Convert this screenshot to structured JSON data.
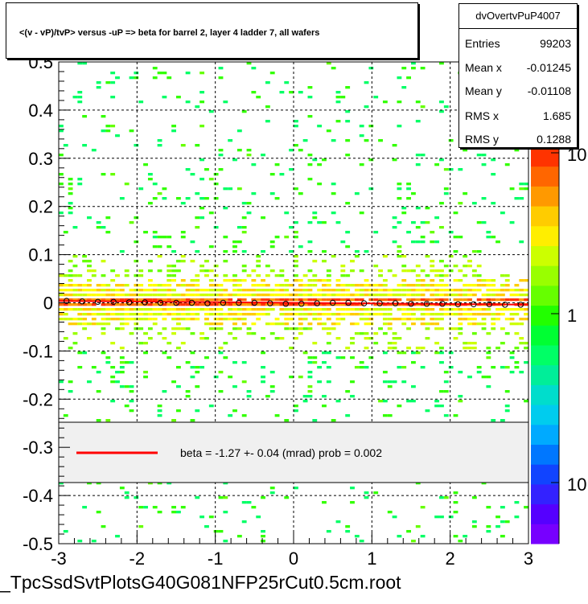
{
  "title": "<(v - vP)/tvP> versus  -uP => beta for barrel 2, layer 4 ladder 7, all wafers",
  "stats": {
    "name": "dvOvertvPuP4007",
    "rows": [
      {
        "label": "Entries",
        "value": "99203"
      },
      {
        "label": "Mean x",
        "value": "-0.01245"
      },
      {
        "label": "Mean y",
        "value": "-0.01108"
      },
      {
        "label": "RMS x",
        "value": "1.685"
      },
      {
        "label": "RMS y",
        "value": "0.1288"
      }
    ]
  },
  "fit_legend": {
    "text": "beta =    -1.27 +-  0.04 (mrad) prob = 0.002",
    "line_color": "#ff0000"
  },
  "footer": "_TpcSsdSvtPlotsG40G081NFP25rCut0.5cm.root",
  "chart_data": {
    "type": "heatmap",
    "xlim": [
      -3,
      3
    ],
    "ylim": [
      -0.5,
      0.5
    ],
    "x_ticks": [
      "-3",
      "-2",
      "-1",
      "0",
      "1",
      "2",
      "3"
    ],
    "y_ticks": [
      "-0.5",
      "-0.4",
      "-0.3",
      "-0.2",
      "-0.1",
      "0",
      "0.1",
      "0.2",
      "0.3",
      "0.4",
      "0.5"
    ],
    "z_scale": "log",
    "z_tick_labels": [
      "10",
      "1",
      "10"
    ],
    "grid": true,
    "profile": {
      "x": [
        -2.9,
        -2.7,
        -2.5,
        -2.3,
        -2.1,
        -1.9,
        -1.7,
        -1.5,
        -1.3,
        -1.1,
        -0.9,
        -0.7,
        -0.5,
        -0.3,
        -0.1,
        0.1,
        0.3,
        0.5,
        0.7,
        0.9,
        1.1,
        1.3,
        1.5,
        1.7,
        1.9,
        2.1,
        2.3,
        2.5,
        2.7,
        2.9
      ],
      "y": [
        0.004,
        0.003,
        0.002,
        0.002,
        0.001,
        0.001,
        0.0,
        0.0,
        0.0,
        -0.001,
        0.0,
        0.0,
        0.0,
        -0.001,
        -0.002,
        -0.002,
        -0.001,
        0.0,
        0.0,
        -0.001,
        -0.001,
        -0.001,
        -0.002,
        -0.002,
        -0.002,
        -0.003,
        -0.003,
        -0.003,
        -0.004,
        -0.004
      ]
    },
    "fit": {
      "slope_mrad": -1.27,
      "slope_err_mrad": 0.04,
      "prob": 0.002
    }
  }
}
